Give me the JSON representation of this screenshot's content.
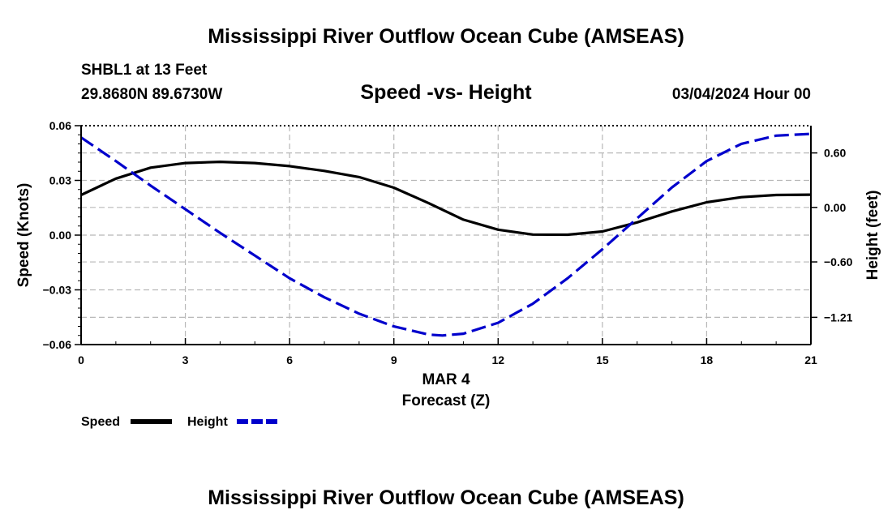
{
  "header": {
    "title": "Mississippi River Outflow Ocean Cube (AMSEAS)",
    "station": "SHBL1 at 13 Feet",
    "coords": "29.8680N  89.6730W",
    "subtitle": "Speed -vs- Height",
    "datetime": "03/04/2024 Hour 00"
  },
  "footer": {
    "title": "Mississippi River Outflow Ocean Cube (AMSEAS)"
  },
  "chart_data": {
    "type": "line",
    "title": "Speed -vs- Height",
    "xlabel_date": "MAR 4",
    "xlabel": "Forecast (Z)",
    "ylabel": "Speed (Knots)",
    "y2label": "Height (feet)",
    "xlim": [
      0,
      21
    ],
    "ylim": [
      -0.06,
      0.06
    ],
    "y2lim": [
      -1.51,
      0.9
    ],
    "x_ticks": [
      0,
      3,
      6,
      9,
      12,
      15,
      18,
      21
    ],
    "y_ticks": [
      -0.06,
      -0.03,
      0.0,
      0.03,
      0.06
    ],
    "y_tick_labels": [
      "−0.06",
      "−0.03",
      "0.00",
      "0.03",
      "0.06"
    ],
    "y2_ticks": [
      0.6,
      0.0,
      -0.6,
      -1.21
    ],
    "y2_tick_labels": [
      "0.60",
      "0.00",
      "−0.60",
      "−1.21"
    ],
    "grid": true,
    "series": [
      {
        "name": "Speed",
        "axis": "left",
        "color": "#000000",
        "style": "solid",
        "x": [
          0,
          1,
          2,
          3,
          4,
          5,
          6,
          7,
          8,
          9,
          10,
          11,
          12,
          13,
          14,
          15,
          16,
          17,
          18,
          19,
          20,
          21
        ],
        "values": [
          0.022,
          0.031,
          0.037,
          0.0395,
          0.0402,
          0.0395,
          0.0378,
          0.0352,
          0.0318,
          0.026,
          0.0175,
          0.0085,
          0.003,
          0.0003,
          0.0002,
          0.002,
          0.007,
          0.013,
          0.018,
          0.0208,
          0.022,
          0.0222
        ]
      },
      {
        "name": "Height",
        "axis": "right",
        "color": "#0000cc",
        "style": "dashed",
        "x": [
          0,
          1,
          2,
          3,
          4,
          5,
          6,
          7,
          8,
          9,
          10,
          10.4,
          11,
          12,
          13,
          14,
          15,
          16,
          17,
          18,
          19,
          20,
          21
        ],
        "values": [
          0.77,
          0.51,
          0.24,
          -0.02,
          -0.28,
          -0.53,
          -0.78,
          -0.99,
          -1.17,
          -1.31,
          -1.4,
          -1.41,
          -1.39,
          -1.27,
          -1.06,
          -0.78,
          -0.46,
          -0.12,
          0.22,
          0.51,
          0.7,
          0.79,
          0.81
        ]
      }
    ],
    "legend": [
      {
        "label": "Speed",
        "color": "#000000",
        "style": "solid"
      },
      {
        "label": "Height",
        "color": "#0000cc",
        "style": "dashed"
      }
    ],
    "legend_position": "bottom-left"
  }
}
